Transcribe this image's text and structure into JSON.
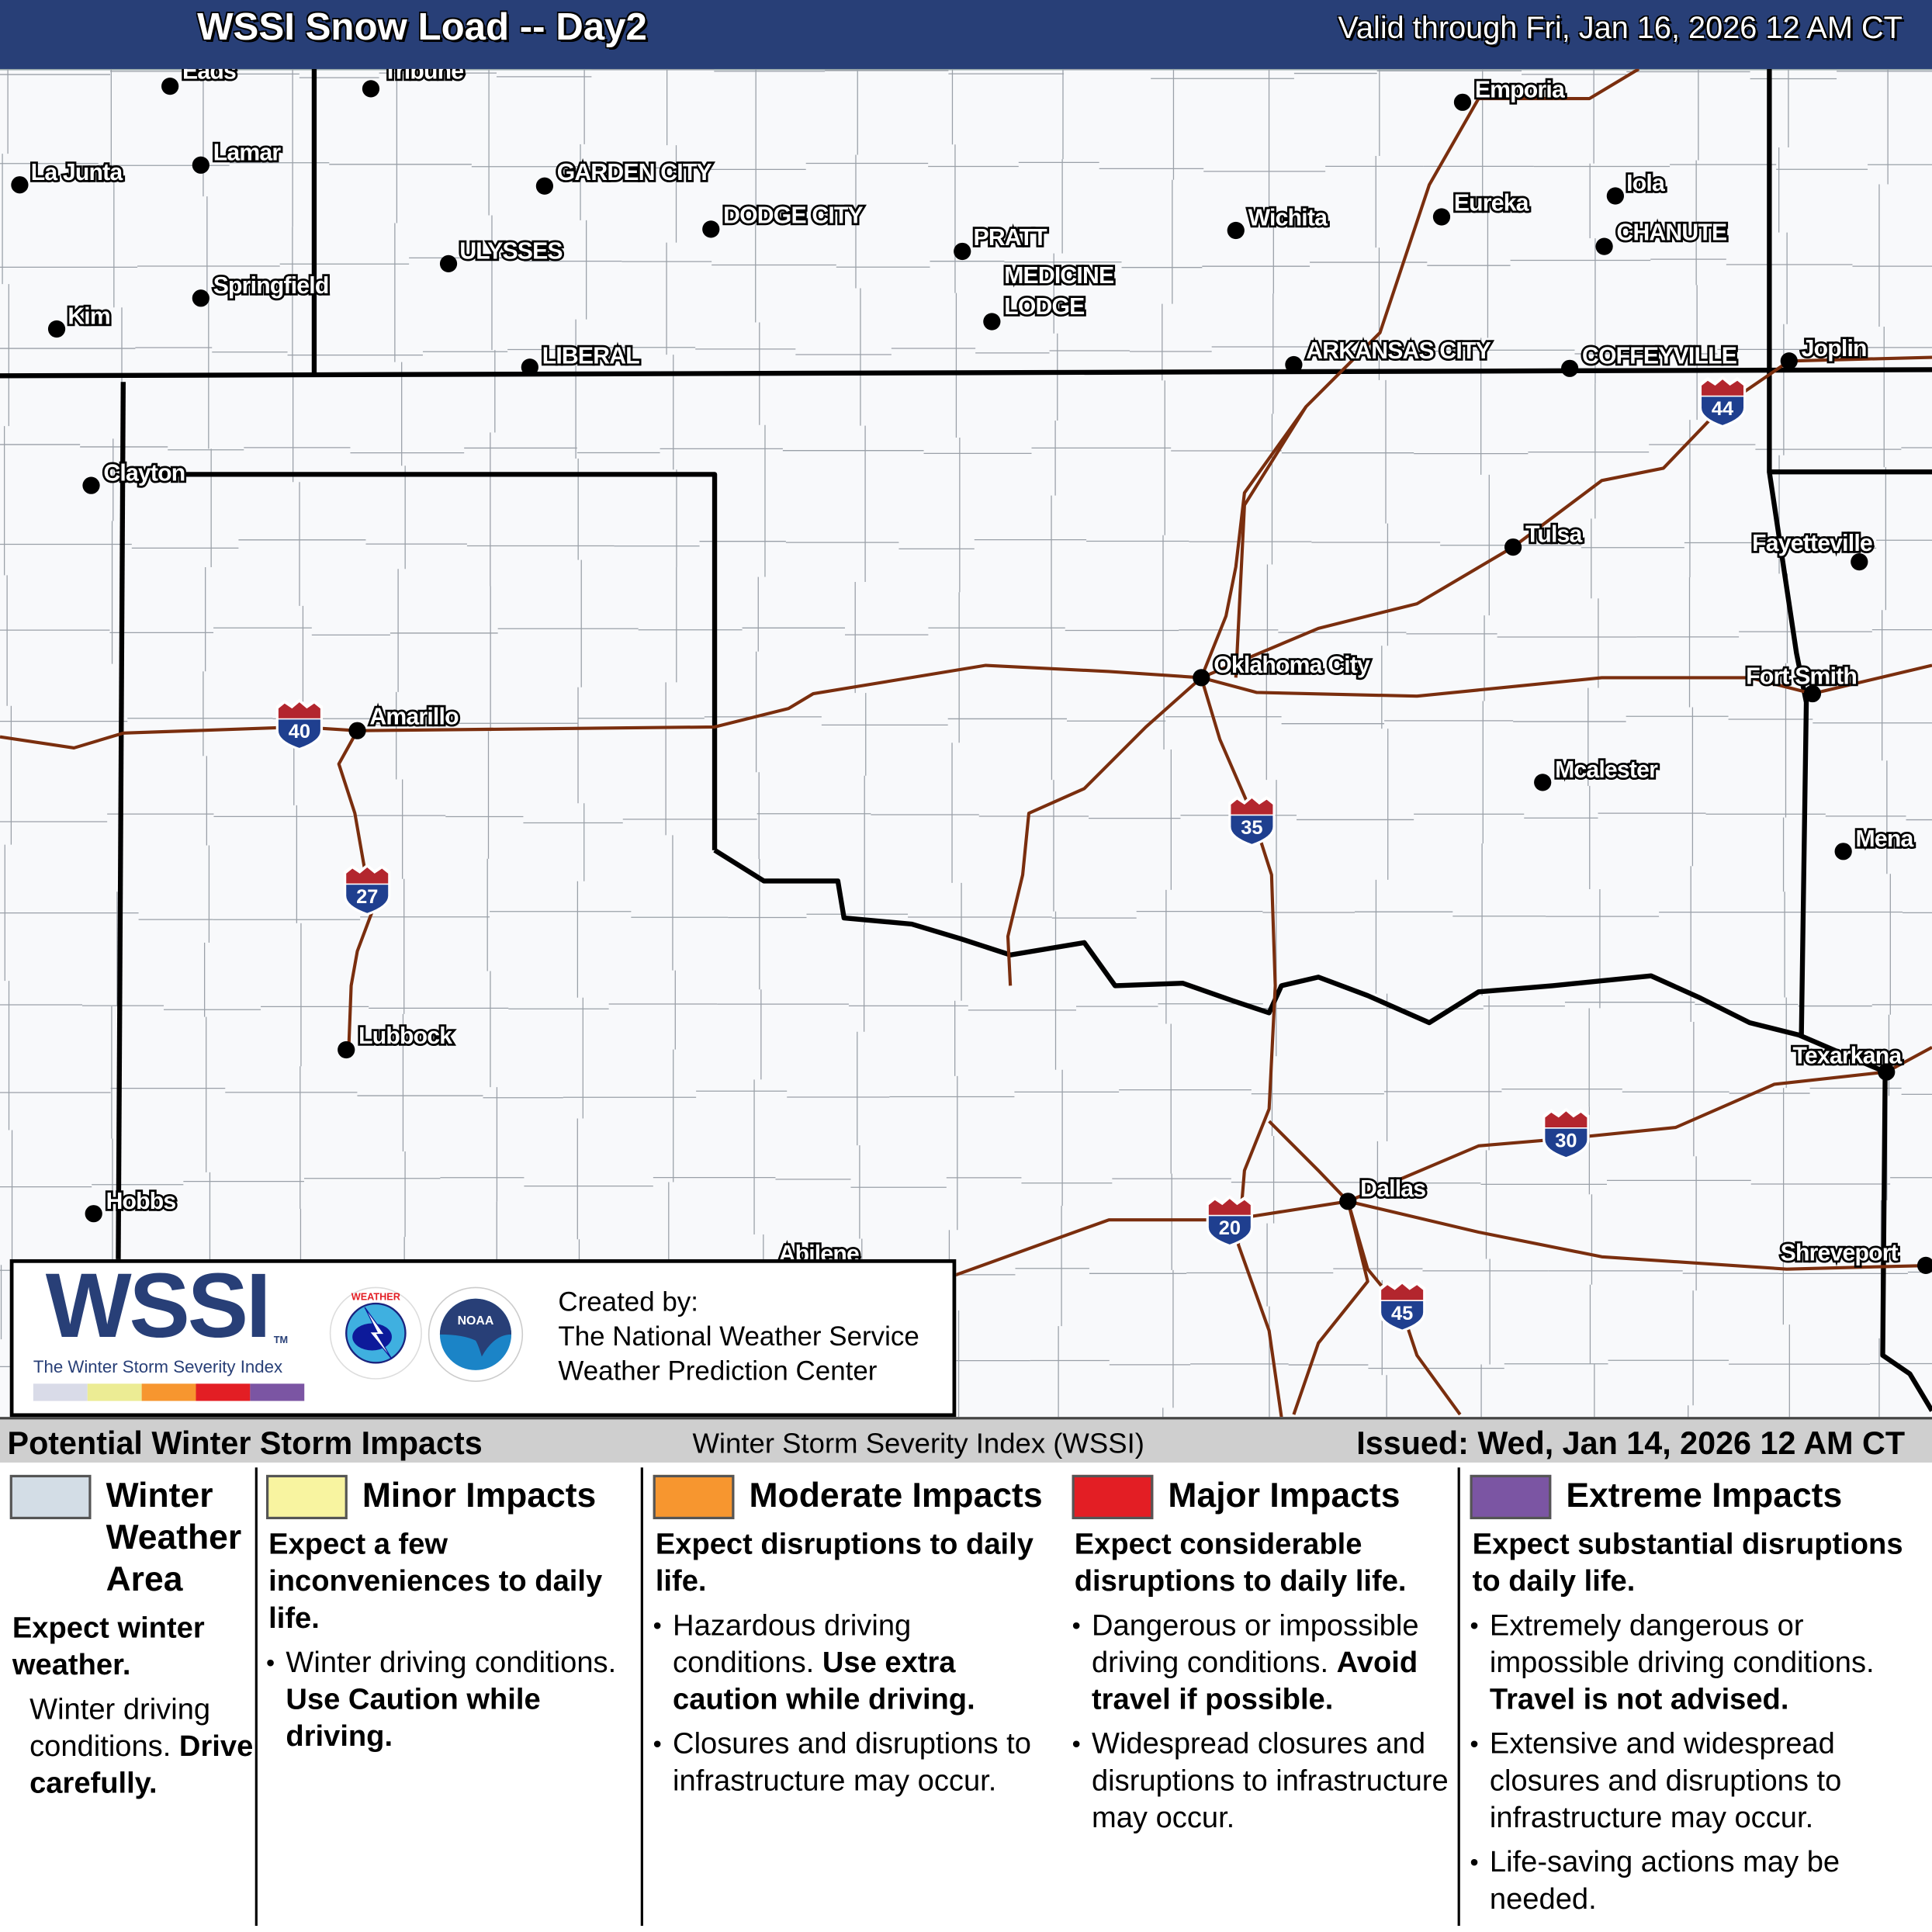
{
  "header": {
    "title": "WSSI Snow Load -- Day2",
    "valid": "Valid through Fri, Jan 16, 2026 12 AM CT",
    "background": "#283f77"
  },
  "map": {
    "cities": [
      "Eads",
      "Tribune",
      "La Junta",
      "Lamar",
      "GARDEN CITY",
      "DODGE CITY",
      "ULYSSES",
      "Springfield",
      "Kim",
      "LIBERAL",
      "PRATT",
      "MEDICINE",
      "LODGE",
      "Wichita",
      "Emporia",
      "Eureka",
      "Iola",
      "CHANUTE",
      "ARKANSAS CITY",
      "COFFEYVILLE",
      "Joplin",
      "Clayton",
      "Tulsa",
      "Fayetteville",
      "Oklahoma City",
      "Fort Smith",
      "Amarillo",
      "Mcalester",
      "Mena",
      "Lubbock",
      "Texarkana",
      "Dallas",
      "Hobbs",
      "Abilene",
      "Shreveport"
    ],
    "interstates": [
      "40",
      "27",
      "35",
      "44",
      "30",
      "20",
      "45"
    ],
    "colors": {
      "interstate": "#7a2e0e",
      "state_border": "#000000",
      "county_border": "#9aa0a8",
      "shield_blue": "#1f3f8f",
      "shield_red": "#b3262e"
    }
  },
  "logo": {
    "wssi": "WSSI",
    "tm": "TM",
    "subtitle": "The Winter Storm Severity Index",
    "credits": [
      "Created by:",
      "The National Weather Service",
      "Weather Prediction Center"
    ],
    "nws_text": "NATIONAL WEATHER SERVICE",
    "noaa_text": "NOAA"
  },
  "bar": {
    "left": "Potential Winter Storm Impacts",
    "middle": "Winter Storm Severity Index (WSSI)",
    "right": "Issued: Wed, Jan 14, 2026 12 AM CT"
  },
  "legend": [
    {
      "title": "Winter Weather Area",
      "color": "#d3dde6",
      "lead": "Expect winter weather.",
      "items": [
        {
          "text": "Winter driving conditions.",
          "bold": "Drive carefully."
        }
      ]
    },
    {
      "title": "Minor Impacts",
      "color": "#f8f4a0",
      "lead": "Expect a few inconveniences to daily life.",
      "items": [
        {
          "text": "Winter driving conditions.",
          "bold": "Use Caution while driving."
        }
      ]
    },
    {
      "title": "Moderate Impacts",
      "color": "#f7962f",
      "lead": "Expect disruptions to daily life.",
      "items": [
        {
          "text": "Hazardous driving conditions.",
          "bold": "Use extra caution while driving."
        },
        {
          "text": "Closures and disruptions to infrastructure may occur.",
          "bold": ""
        }
      ]
    },
    {
      "title": "Major Impacts",
      "color": "#e31e24",
      "lead": "Expect considerable disruptions to daily life.",
      "items": [
        {
          "text": "Dangerous or impossible driving conditions.",
          "bold": "Avoid travel if possible."
        },
        {
          "text": "Widespread closures and disruptions to infrastructure may occur.",
          "bold": ""
        }
      ]
    },
    {
      "title": "Extreme Impacts",
      "color": "#7b55a3",
      "lead": "Expect substantial disruptions to daily life.",
      "items": [
        {
          "text": "Extremely dangerous or impossible driving conditions.",
          "bold": "Travel is not advised."
        },
        {
          "text": "Extensive and widespread closures and disruptions to infrastructure may occur.",
          "bold": ""
        },
        {
          "text": "Life-saving actions may be needed.",
          "bold": ""
        }
      ]
    }
  ]
}
